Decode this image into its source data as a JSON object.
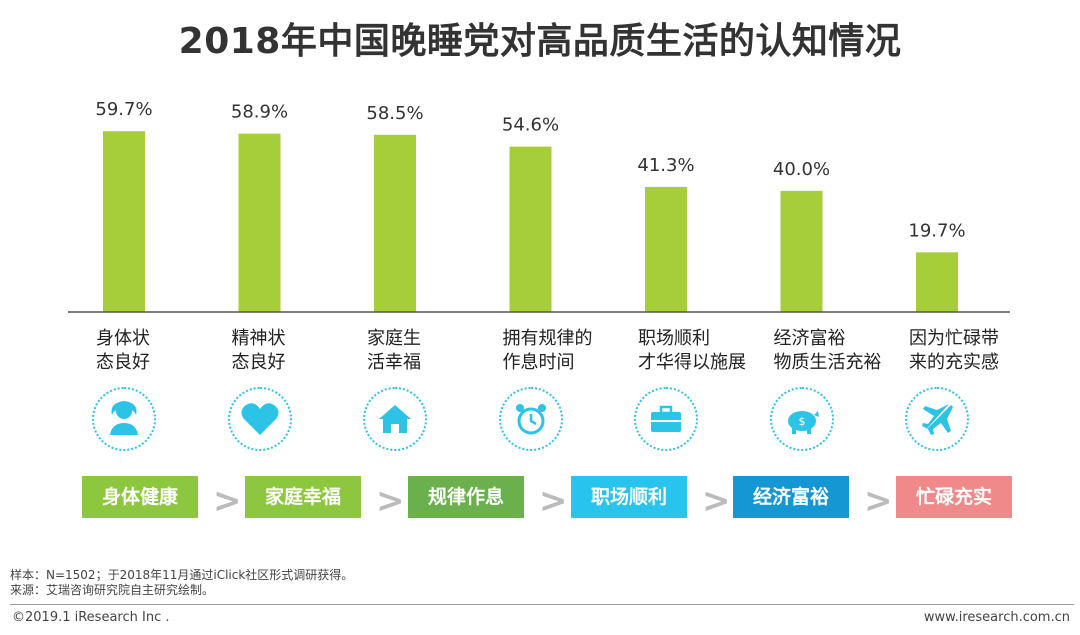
{
  "title": "2018年中国晚睡党对高品质生活的认知情况",
  "chart_data": {
    "type": "bar",
    "categories": [
      [
        "身体状",
        "态良好"
      ],
      [
        "精神状",
        "态良好"
      ],
      [
        "家庭生",
        "活幸福"
      ],
      [
        "拥有规律的",
        "作息时间"
      ],
      [
        "职场顺利",
        "才华得以施展"
      ],
      [
        "经济富裕",
        "物质生活充裕"
      ],
      [
        "因为忙碌带",
        "来的充实感"
      ]
    ],
    "values": [
      59.7,
      58.9,
      58.5,
      54.6,
      41.3,
      40.0,
      19.7
    ],
    "value_labels": [
      "59.7%",
      "58.9%",
      "58.5%",
      "54.6%",
      "41.3%",
      "40.0%",
      "19.7%"
    ],
    "ylim": [
      0,
      70
    ],
    "bar_color": "#a6ce39",
    "grid": false,
    "legend": "none"
  },
  "icons": [
    "person-icon",
    "heart-icon",
    "house-icon",
    "alarm-clock-icon",
    "briefcase-icon",
    "piggy-bank-icon",
    "airplane-icon"
  ],
  "icon_color": "#2cc3e6",
  "flow_tags": [
    {
      "label": "身体健康",
      "color": "#8dc63f"
    },
    {
      "label": "家庭幸福",
      "color": "#8dc63f"
    },
    {
      "label": "规律作息",
      "color": "#6ab04c"
    },
    {
      "label": "职场顺利",
      "color": "#29c4ee"
    },
    {
      "label": "经济富裕",
      "color": "#1597d4"
    },
    {
      "label": "忙碌充实",
      "color": "#f08a8a"
    }
  ],
  "separator": ">",
  "footer": {
    "sample_note": "样本：N=1502；于2018年11月通过iClick社区形式调研获得。",
    "source_note": "来源：艾瑞咨询研究院自主研究绘制。",
    "copyright": "©2019.1 iResearch Inc .",
    "website": "www.iresearch.com.cn"
  }
}
